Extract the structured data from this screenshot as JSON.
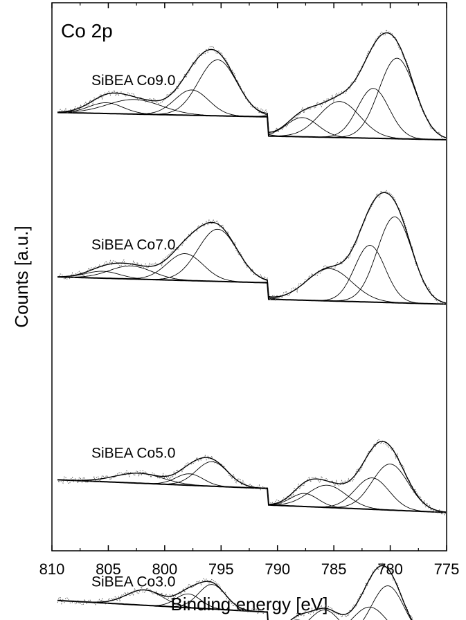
{
  "chart_data": {
    "type": "line",
    "title": "Co 2p",
    "xlabel": "Binding energy [eV]",
    "ylabel": "Counts [a.u.]",
    "x_reversed": true,
    "xlim": [
      775,
      810
    ],
    "xticks": [
      810,
      805,
      800,
      795,
      790,
      785,
      780,
      775
    ],
    "y_ticks_shown": false,
    "grid": false,
    "series": [
      {
        "name": "SiBEA Co9.0",
        "offset": 0.05,
        "x_start": 809.5,
        "background": {
          "left": 0.015,
          "right": 0.0,
          "step": 790.8,
          "step_size": 0.035
        },
        "peaks": [
          {
            "center": 779.4,
            "height": 0.525,
            "width": 1.6
          },
          {
            "center": 781.5,
            "height": 0.325,
            "width": 1.4
          },
          {
            "center": 784.5,
            "height": 0.235,
            "width": 1.8
          },
          {
            "center": 787.8,
            "height": 0.125,
            "width": 1.4
          },
          {
            "center": 795.3,
            "height": 0.365,
            "width": 1.7
          },
          {
            "center": 797.6,
            "height": 0.165,
            "width": 1.5
          },
          {
            "center": 802.7,
            "height": 0.095,
            "width": 2.4
          },
          {
            "center": 805.2,
            "height": 0.07,
            "width": 1.5
          }
        ]
      },
      {
        "name": "SiBEA Co7.0",
        "offset": 0.35,
        "x_start": 809.5,
        "background": {
          "left": 0.02,
          "right": 0.0,
          "step": 790.8,
          "step_size": 0.03
        },
        "peaks": [
          {
            "center": 779.6,
            "height": 0.56,
            "width": 1.55
          },
          {
            "center": 781.8,
            "height": 0.37,
            "width": 1.35
          },
          {
            "center": 785.4,
            "height": 0.21,
            "width": 2.0
          },
          {
            "center": 795.3,
            "height": 0.34,
            "width": 1.75
          },
          {
            "center": 798.2,
            "height": 0.175,
            "width": 1.6
          },
          {
            "center": 803.0,
            "height": 0.085,
            "width": 1.9
          },
          {
            "center": 805.5,
            "height": 0.045,
            "width": 1.5
          }
        ]
      },
      {
        "name": "SiBEA Co5.0",
        "offset": 0.73,
        "x_start": 809.5,
        "background": {
          "left": 0.03,
          "right": 0.0,
          "step": 790.8,
          "step_size": 0.03
        },
        "peaks": [
          {
            "center": 780.0,
            "height": 0.3,
            "width": 1.6
          },
          {
            "center": 781.6,
            "height": 0.205,
            "width": 1.5
          },
          {
            "center": 785.6,
            "height": 0.145,
            "width": 1.7
          },
          {
            "center": 787.6,
            "height": 0.085,
            "width": 1.2
          },
          {
            "center": 795.8,
            "height": 0.16,
            "width": 1.4
          },
          {
            "center": 797.8,
            "height": 0.075,
            "width": 1.2
          },
          {
            "center": 802.3,
            "height": 0.065,
            "width": 2.1
          }
        ]
      },
      {
        "name": "SiBEA Co3.0",
        "offset": 0.965,
        "x_start": 809.5,
        "background": {
          "left": 0.04,
          "right": 0.0,
          "step": 790.8,
          "step_size": 0.035
        },
        "peaks": [
          {
            "center": 780.2,
            "height": 0.34,
            "width": 1.45
          },
          {
            "center": 781.8,
            "height": 0.195,
            "width": 1.5
          },
          {
            "center": 785.8,
            "height": 0.16,
            "width": 1.3
          },
          {
            "center": 788.2,
            "height": 0.085,
            "width": 1.0
          },
          {
            "center": 795.8,
            "height": 0.16,
            "width": 1.2
          },
          {
            "center": 797.9,
            "height": 0.09,
            "width": 1.1
          },
          {
            "center": 801.8,
            "height": 0.1,
            "width": 1.6
          }
        ]
      }
    ]
  }
}
